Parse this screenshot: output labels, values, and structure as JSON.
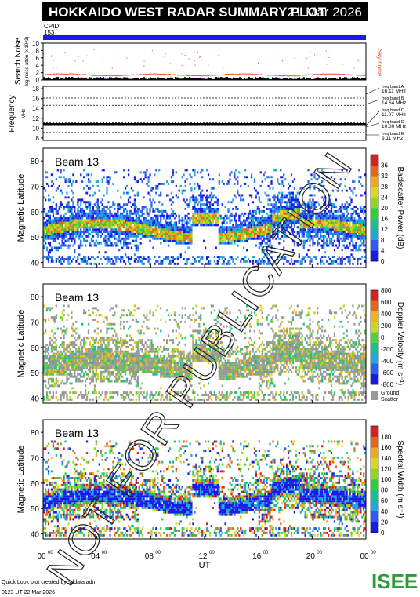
{
  "header": {
    "title": "HOKKAIDO WEST RADAR SUMMARY PLOT",
    "date": "21 Mar 2026",
    "cpid_label": "CPID:",
    "cpid_value": "153"
  },
  "noise_panel": {
    "ylabel": "Search Noise",
    "ylabel_sub": "log-noise-atten (x 10^3)",
    "yticks": [
      "0",
      "2",
      "4",
      "6",
      "8",
      "10"
    ],
    "sky_label": "Sky noise",
    "colors": {
      "search": "#000000",
      "sky": "#e8542a"
    }
  },
  "freq_panel": {
    "ylabel": "Frequency",
    "ylabel_sub": "MHz",
    "yticks": [
      "8",
      "10",
      "12",
      "14",
      "16",
      "18"
    ],
    "bands": [
      {
        "label": "freq band A",
        "value": "16.11 MHz"
      },
      {
        "label": "freq band B",
        "value": "14.64 MHz"
      },
      {
        "label": "freq band C",
        "value": "11.07 MHz"
      },
      {
        "label": "freq band D",
        "value": "10.80 MHz"
      },
      {
        "label": "freq band E",
        "value": "9.11 MHz"
      }
    ]
  },
  "panels": [
    {
      "beam": "Beam 13",
      "ylabel": "Magnetic Latitude",
      "yticks": [
        "40",
        "50",
        "60",
        "70",
        "80"
      ],
      "cbar_label": "Backscatter Power (dB)",
      "cbar_ticks": [
        "0",
        "4",
        "8",
        "12",
        "16",
        "20",
        "24",
        "28",
        "32",
        "36"
      ],
      "cbar_colors": [
        "#1a1ae6",
        "#2e5cf0",
        "#1fa8d8",
        "#18c08a",
        "#2fcf3a",
        "#8fd61e",
        "#d8d81c",
        "#f0a81c",
        "#e8641a",
        "#d82020"
      ]
    },
    {
      "beam": "Beam 13",
      "ylabel": "Magnetic Latitude",
      "yticks": [
        "40",
        "50",
        "60",
        "70",
        "80"
      ],
      "cbar_label": "Doppler Velocity (m s⁻¹)",
      "cbar_ticks": [
        "800",
        "600",
        "400",
        "200",
        "0",
        "-200",
        "-400",
        "-600",
        "-800"
      ],
      "cbar_colors": [
        "#1a1ae6",
        "#2860f0",
        "#1fa8d8",
        "#18c08a",
        "#50d03a",
        "#c8d81c",
        "#f0b41c",
        "#e8641a",
        "#d82020"
      ],
      "ground_label": "Ground Scatter"
    },
    {
      "beam": "Beam 13",
      "ylabel": "Magnetic Latitude",
      "yticks": [
        "40",
        "50",
        "60",
        "70",
        "80"
      ],
      "cbar_label": "Spectral Width (m s⁻¹)",
      "cbar_ticks": [
        "0",
        "20",
        "40",
        "60",
        "80",
        "100",
        "120",
        "140",
        "160",
        "180"
      ],
      "cbar_colors": [
        "#1a1ae6",
        "#2e5cf0",
        "#1fa8d8",
        "#18c08a",
        "#2fcf3a",
        "#8fd61e",
        "#d8d81c",
        "#f0a81c",
        "#e8641a",
        "#d82020"
      ]
    }
  ],
  "xaxis": {
    "label": "UT",
    "ticks": [
      "00",
      "04",
      "08",
      "12",
      "16",
      "20",
      "00"
    ],
    "tick_sup": "00"
  },
  "watermark": "NOT FOR PUBLICATION",
  "footer": {
    "credit": "Quick Look plot created by sddata.adm",
    "timestamp": "0123 UT 22 Mar 2026",
    "logo": "ISEE"
  },
  "chart_data": [
    {
      "type": "line",
      "title": "",
      "ylabel": "Search Noise",
      "ylim": [
        0,
        10
      ],
      "x_range_hours": [
        0,
        24
      ],
      "series": [
        {
          "name": "Sky noise",
          "values_approx": 1.4
        }
      ]
    },
    {
      "type": "line",
      "ylabel": "Frequency",
      "ylim": [
        8,
        18
      ],
      "x_range_hours": [
        0,
        24
      ],
      "series": [
        {
          "name": "Frequency",
          "values_approx": 10.8
        }
      ]
    },
    {
      "type": "heatmap",
      "ylabel": "Magnetic Latitude",
      "ylim": [
        38,
        85
      ],
      "x_range_hours": [
        0,
        24
      ],
      "zlabel": "Backscatter Power (dB)",
      "zlim": [
        0,
        36
      ]
    },
    {
      "type": "heatmap",
      "ylabel": "Magnetic Latitude",
      "ylim": [
        38,
        85
      ],
      "x_range_hours": [
        0,
        24
      ],
      "zlabel": "Doppler Velocity",
      "zlim": [
        -800,
        800
      ]
    },
    {
      "type": "heatmap",
      "ylabel": "Magnetic Latitude",
      "ylim": [
        38,
        85
      ],
      "x_range_hours": [
        0,
        24
      ],
      "zlabel": "Spectral Width",
      "zlim": [
        0,
        180
      ]
    }
  ]
}
